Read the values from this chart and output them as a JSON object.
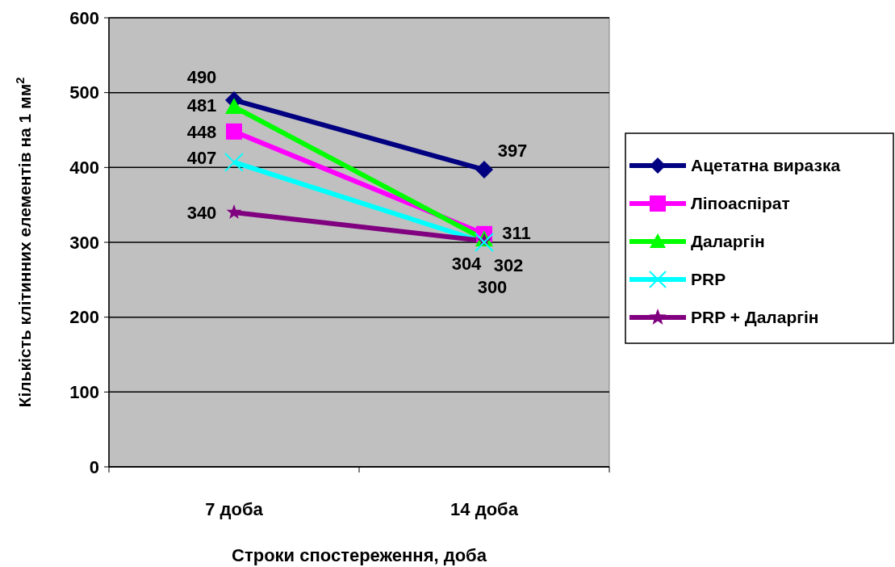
{
  "chart_data": {
    "type": "line",
    "xlabel": "Строки спостереження, доба",
    "ylabel": "Кількість клітинних елементів на 1 мм$^{2}$",
    "categories": [
      "7 доба",
      "14 доба"
    ],
    "ylim": [
      0,
      600
    ],
    "yticks": [
      0,
      100,
      200,
      300,
      400,
      500,
      600
    ],
    "grid": "y",
    "legend": "right",
    "data_labels": true,
    "series": [
      {
        "name": "Ацетатна виразка",
        "color": "#000080",
        "marker": "diamond",
        "values": [
          490,
          397
        ]
      },
      {
        "name": "Ліпоаспірат",
        "color": "#ff00ff",
        "marker": "square",
        "values": [
          448,
          311
        ]
      },
      {
        "name": "Даларгін",
        "color": "#00ff00",
        "marker": "triangle",
        "values": [
          481,
          304
        ]
      },
      {
        "name": "PRP",
        "color": "#00ffff",
        "marker": "cross",
        "values": [
          407,
          300
        ]
      },
      {
        "name": "PRP + Даларгін",
        "color": "#800080",
        "marker": "star",
        "values": [
          340,
          302
        ]
      }
    ]
  }
}
